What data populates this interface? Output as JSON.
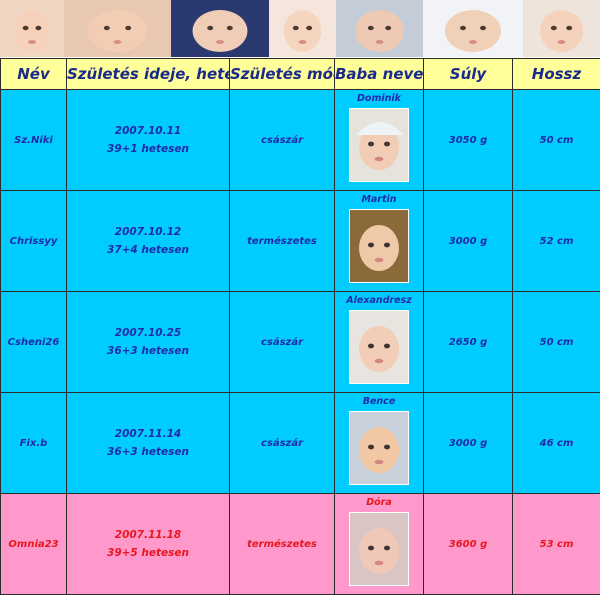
{
  "banner": {
    "photos": [
      {
        "icon": "sleeping-baby-photo",
        "bg": "#f2d6c4",
        "face": "#f6d2bb"
      },
      {
        "icon": "baby-face-closeup-photo",
        "bg": "#e8c8b0",
        "face": "#f3cdb3"
      },
      {
        "icon": "sitting-baby-photo",
        "bg": "#2a3a70",
        "face": "#f0cdb7"
      },
      {
        "icon": "baby-face-photo",
        "bg": "#f4e6dc",
        "face": "#f6d5bf"
      },
      {
        "icon": "baby-in-blanket-photo",
        "bg": "#c4ccd8",
        "face": "#eecab4"
      },
      {
        "icon": "baby-under-towel-photo",
        "bg": "#f1f3f6",
        "face": "#f1d0b8"
      },
      {
        "icon": "surprised-baby-photo",
        "bg": "#eee4dc",
        "face": "#f4d2bb"
      }
    ]
  },
  "table": {
    "headers": {
      "nev": "Név",
      "szuletes_ideje": "Születés ideje, hete",
      "szuletes_modja": "Születés módja",
      "baba_neve": "Baba neve",
      "suly": "Súly",
      "hossz": "Hossz"
    },
    "rows": [
      {
        "nev": "Sz.Niki",
        "datum": "2007.10.11",
        "het": "39+1 hetesen",
        "mod": "császár",
        "baba": "Dominik",
        "suly": "3050 g",
        "hossz": "50 cm",
        "theme": "blue",
        "photo": {
          "icon": "baby-dominik-photo",
          "bg": "#e6e2dc",
          "face": "#f2cdb5",
          "hat": "#eef4f6"
        }
      },
      {
        "nev": "Chrissyy",
        "datum": "2007.10.12",
        "het": "37+4 hetesen",
        "mod": "természetes",
        "baba": "Martin",
        "suly": "3000 g",
        "hossz": "52 cm",
        "theme": "blue",
        "photo": {
          "icon": "baby-martin-photo",
          "bg": "#8a6a3a",
          "face": "#f0c9a8",
          "hat": ""
        }
      },
      {
        "nev": "Csheni26",
        "datum": "2007.10.25",
        "het": "36+3 hetesen",
        "mod": "császár",
        "baba": "Alexandresz",
        "suly": "2650 g",
        "hossz": "50 cm",
        "theme": "blue",
        "photo": {
          "icon": "baby-alexandresz-photo",
          "bg": "#e8e4e0",
          "face": "#f2cdb8",
          "hat": ""
        }
      },
      {
        "nev": "Fix.b",
        "datum": "2007.11.14",
        "het": "36+3 hetesen",
        "mod": "császár",
        "baba": "Bence",
        "suly": "3000 g",
        "hossz": "46 cm",
        "theme": "blue",
        "photo": {
          "icon": "baby-bence-photo",
          "bg": "#c8d0dc",
          "face": "#f2c8a4",
          "hat": ""
        }
      },
      {
        "nev": "Omnia23",
        "datum": "2007.11.18",
        "het": "39+5 hetesen",
        "mod": "természetes",
        "baba": "Dóra",
        "suly": "3600 g",
        "hossz": "53 cm",
        "theme": "pink",
        "photo": {
          "icon": "baby-dora-photo",
          "bg": "#d9c6c4",
          "face": "#f0c8b8",
          "hat": ""
        }
      }
    ]
  }
}
